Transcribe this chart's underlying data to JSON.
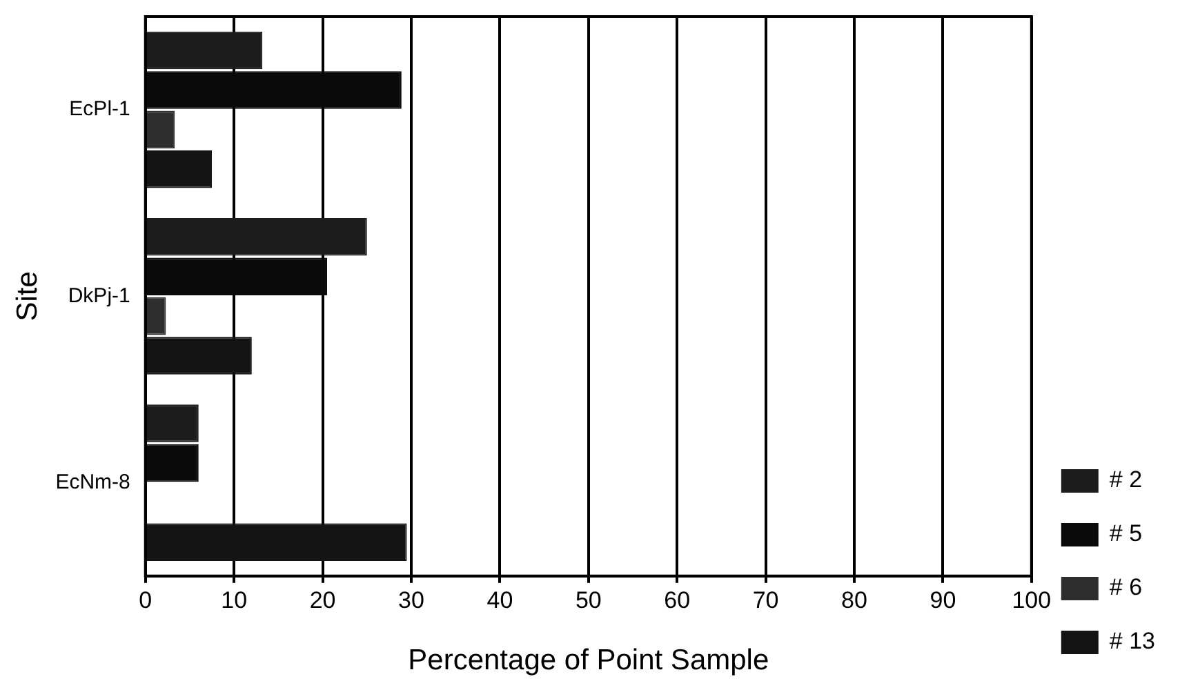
{
  "chart_data": {
    "type": "bar",
    "orientation": "horizontal",
    "xlabel": "Percentage of Point Sample",
    "ylabel": "Site",
    "categories": [
      "EcPl-1",
      "DkPj-1",
      "EcNm-8"
    ],
    "series": [
      {
        "name": "# 2",
        "color": "#1c1c1c",
        "values": [
          13.2,
          25,
          6
        ]
      },
      {
        "name": "# 5",
        "color": "#0a0a0a",
        "values": [
          28.9,
          20.5,
          6
        ]
      },
      {
        "name": "# 6",
        "color": "#2e2e2e",
        "values": [
          3.3,
          2.3,
          0
        ]
      },
      {
        "name": "# 13",
        "color": "#141414",
        "values": [
          7.5,
          12,
          29.5
        ]
      }
    ],
    "xlim": [
      0,
      100
    ],
    "xticks": [
      0,
      10,
      20,
      30,
      40,
      50,
      60,
      70,
      80,
      90,
      100
    ],
    "grid": "x",
    "legend": "bottom right"
  }
}
